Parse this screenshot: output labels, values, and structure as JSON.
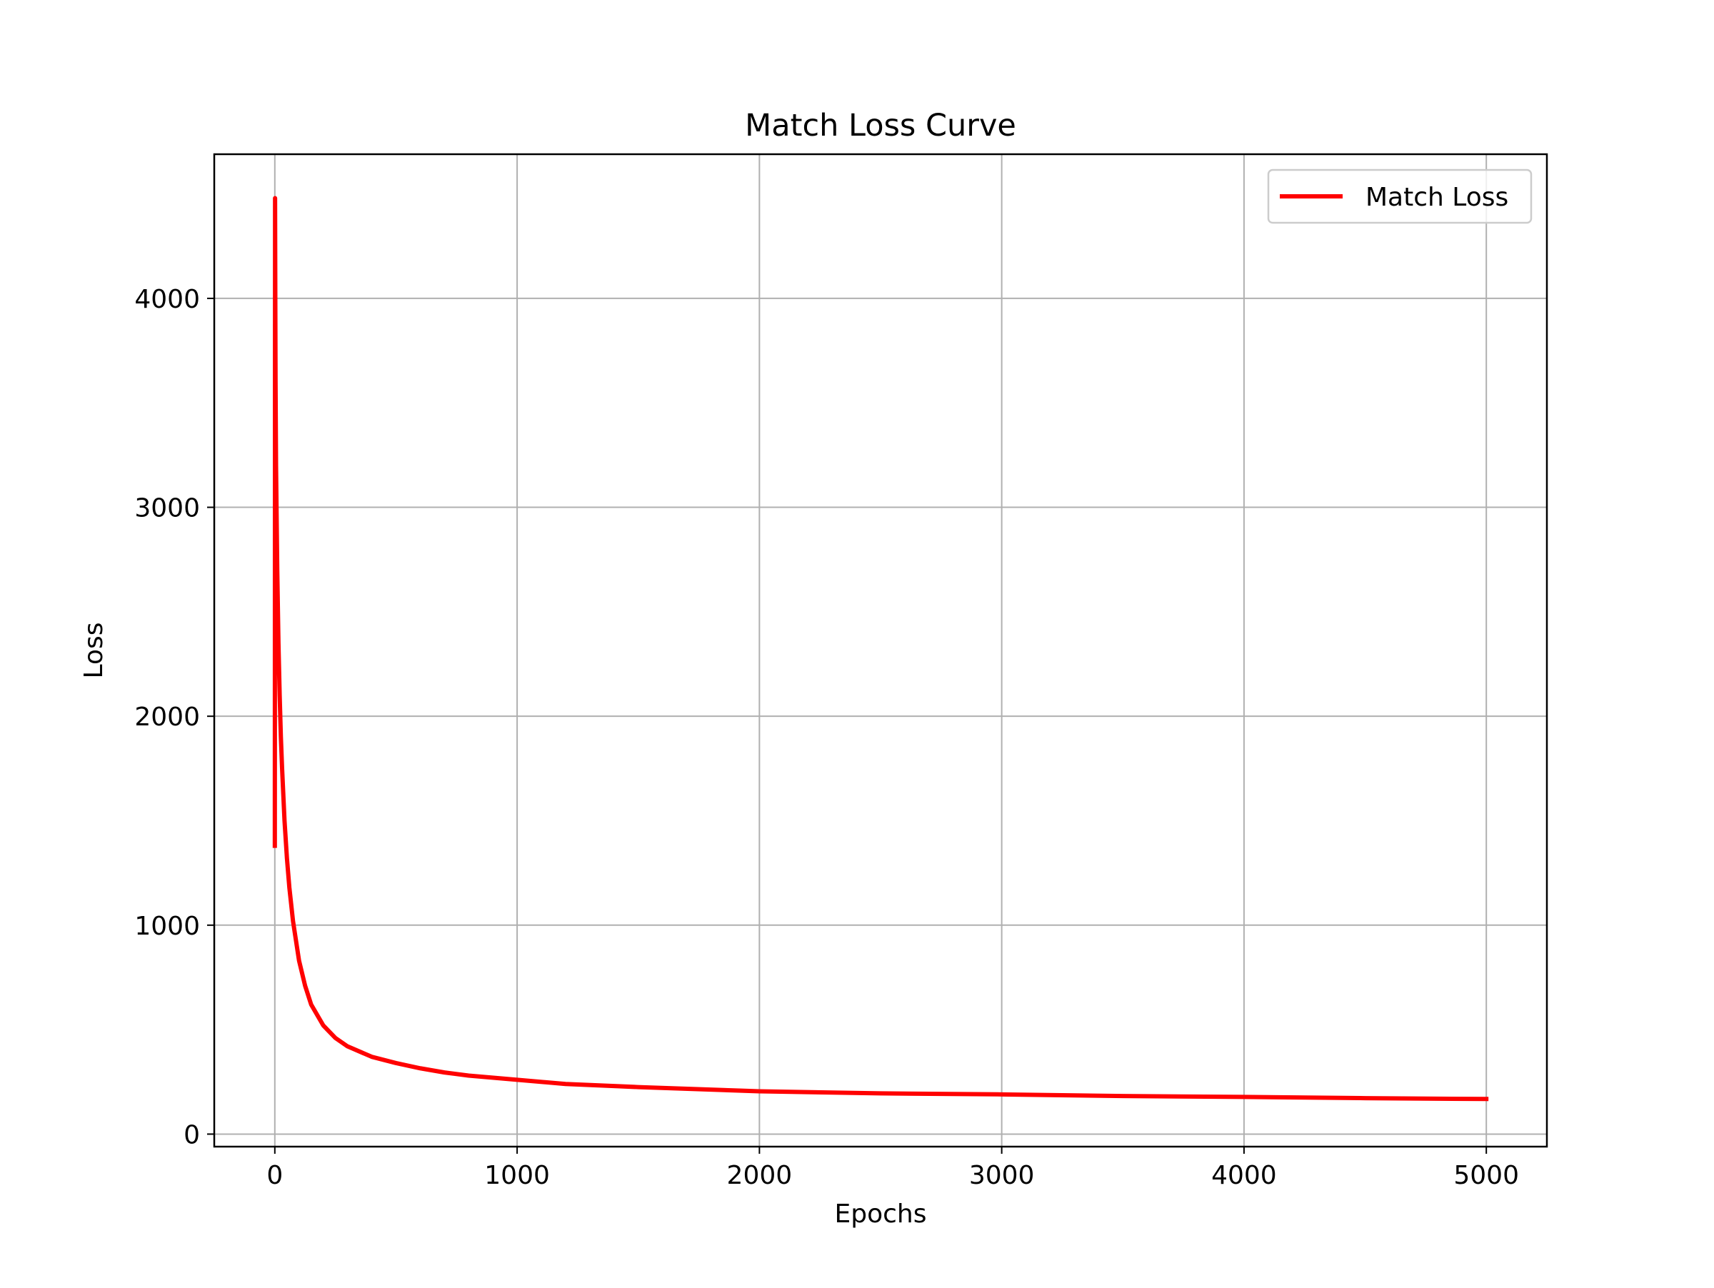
{
  "chart_data": {
    "type": "line",
    "title": "Match Loss Curve",
    "xlabel": "Epochs",
    "ylabel": "Loss",
    "xlim": [
      -250,
      5250
    ],
    "ylim": [
      -60,
      4690
    ],
    "xticks": [
      0,
      1000,
      2000,
      3000,
      4000,
      5000
    ],
    "yticks": [
      0,
      1000,
      2000,
      3000,
      4000
    ],
    "grid": true,
    "legend_position": "upper right",
    "series": [
      {
        "name": "Match Loss",
        "color": "#ff0000",
        "x": [
          0,
          1,
          2,
          3,
          5,
          8,
          10,
          15,
          20,
          25,
          30,
          40,
          50,
          60,
          75,
          100,
          125,
          150,
          200,
          250,
          300,
          400,
          500,
          600,
          700,
          800,
          1000,
          1200,
          1500,
          2000,
          2500,
          3000,
          3500,
          4000,
          4500,
          5000
        ],
        "y": [
          1380,
          4480,
          4000,
          3600,
          3200,
          2900,
          2700,
          2350,
          2100,
          1900,
          1750,
          1500,
          1320,
          1180,
          1020,
          830,
          710,
          620,
          520,
          460,
          420,
          370,
          340,
          315,
          295,
          280,
          260,
          240,
          225,
          205,
          195,
          190,
          182,
          178,
          172,
          168
        ]
      }
    ]
  }
}
